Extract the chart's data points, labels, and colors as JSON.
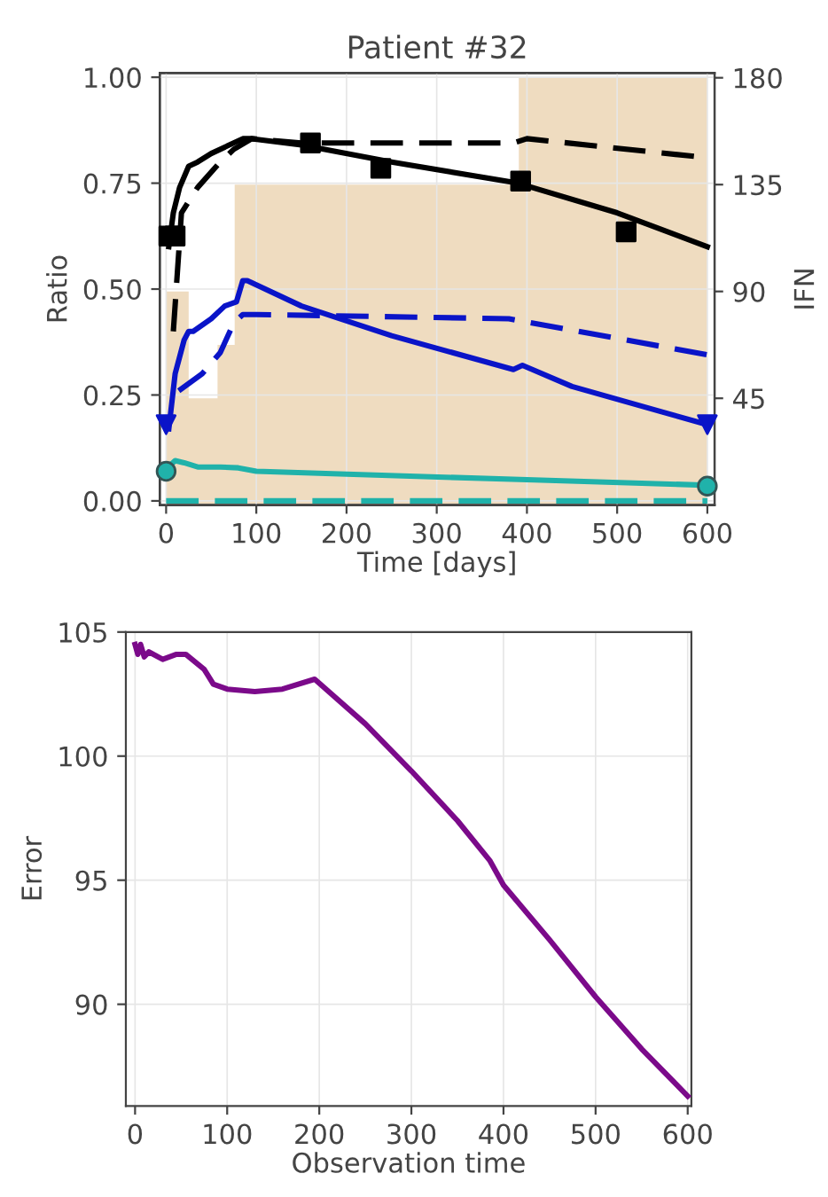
{
  "chart_data": [
    {
      "type": "line",
      "title": "Patient #32",
      "xlabel": "Time [days]",
      "ylabel": "Ratio",
      "y2label": "IFN",
      "xlim": [
        -7,
        608
      ],
      "xticks": [
        0,
        100,
        200,
        300,
        400,
        500,
        600
      ],
      "ylim": [
        -0.01,
        1.01
      ],
      "yticks": [
        {
          "value": 0,
          "label": "0.00"
        },
        {
          "value": 0.25,
          "label": "0.25"
        },
        {
          "value": 0.5,
          "label": "0.50"
        },
        {
          "value": 0.75,
          "label": "0.75"
        },
        {
          "value": 1,
          "label": "1.00"
        }
      ],
      "y2lim": [
        0,
        182
      ],
      "y2ticks": [
        45,
        90,
        135,
        180
      ],
      "grid": true,
      "series": [
        {
          "type": "area",
          "axis": "y2",
          "color": "#efdcc0",
          "x": [
            0,
            25,
            25,
            57,
            57,
            76,
            76,
            391,
            391,
            600
          ],
          "values": [
            90,
            90,
            45,
            45,
            67.5,
            67.5,
            135,
            135,
            180,
            180
          ]
        },
        {
          "type": "line",
          "color": "#000000",
          "line_style": "solid",
          "x": [
            3,
            8,
            15,
            25,
            35,
            50,
            70,
            85,
            95,
            150,
            250,
            390,
            500,
            600
          ],
          "values": [
            0.6,
            0.68,
            0.74,
            0.79,
            0.8,
            0.82,
            0.84,
            0.855,
            0.855,
            0.84,
            0.8,
            0.75,
            0.68,
            0.6
          ]
        },
        {
          "type": "line",
          "color": "#000000",
          "line_style": "dashed",
          "x": [
            8,
            17,
            35,
            60,
            75,
            95,
            150,
            385,
            400,
            600
          ],
          "values": [
            0.4,
            0.68,
            0.74,
            0.8,
            0.83,
            0.855,
            0.845,
            0.845,
            0.855,
            0.81
          ]
        },
        {
          "type": "scatter",
          "color": "#000000",
          "marker": "square",
          "x": [
            3,
            10,
            160,
            238,
            393,
            510
          ],
          "values": [
            0.625,
            0.625,
            0.845,
            0.785,
            0.755,
            0.635
          ]
        },
        {
          "type": "line",
          "color": "#0a14c8",
          "line_style": "solid",
          "x": [
            3,
            10,
            20,
            25,
            30,
            50,
            65,
            78,
            85,
            90,
            150,
            250,
            385,
            395,
            450,
            550,
            600
          ],
          "values": [
            0.17,
            0.3,
            0.38,
            0.4,
            0.4,
            0.43,
            0.46,
            0.47,
            0.52,
            0.52,
            0.46,
            0.39,
            0.31,
            0.32,
            0.27,
            0.21,
            0.18
          ]
        },
        {
          "type": "line",
          "color": "#0a14c8",
          "line_style": "dashed",
          "x": [
            14,
            40,
            60,
            75,
            85,
            100,
            380,
            600
          ],
          "values": [
            0.26,
            0.3,
            0.35,
            0.42,
            0.44,
            0.44,
            0.43,
            0.345
          ]
        },
        {
          "type": "scatter",
          "color": "#0a14c8",
          "marker": "triangle",
          "x": [
            0,
            600
          ],
          "values": [
            0.18,
            0.18
          ]
        },
        {
          "type": "line",
          "color": "#20b2aa",
          "line_style": "solid",
          "x": [
            0,
            10,
            20,
            35,
            60,
            80,
            100,
            200,
            400,
            600
          ],
          "values": [
            0.075,
            0.095,
            0.09,
            0.08,
            0.08,
            0.078,
            0.07,
            0.063,
            0.05,
            0.037
          ]
        },
        {
          "type": "line",
          "color": "#20b2aa",
          "line_style": "dashed",
          "x": [
            0,
            600
          ],
          "values": [
            0.0,
            0.0
          ]
        },
        {
          "type": "scatter",
          "color": "#20b2aa",
          "marker": "circle",
          "x": [
            0,
            600
          ],
          "values": [
            0.07,
            0.035
          ]
        }
      ]
    },
    {
      "type": "line",
      "xlabel": "Observation time",
      "ylabel": "Error",
      "xlim": [
        -10,
        604
      ],
      "xticks": [
        0,
        100,
        200,
        300,
        400,
        500,
        600
      ],
      "ylim": [
        85.9,
        105
      ],
      "yticks": [
        90,
        95,
        100,
        105
      ],
      "grid": true,
      "series": [
        {
          "color": "#7b0a8a",
          "line_style": "solid",
          "x": [
            0,
            3,
            6,
            10,
            15,
            30,
            45,
            55,
            65,
            75,
            85,
            100,
            130,
            160,
            195,
            250,
            300,
            350,
            385,
            400,
            450,
            500,
            550,
            600
          ],
          "values": [
            104.5,
            104.1,
            104.5,
            104.0,
            104.2,
            103.9,
            104.1,
            104.1,
            103.8,
            103.5,
            102.9,
            102.7,
            102.6,
            102.7,
            103.1,
            101.3,
            99.4,
            97.4,
            95.8,
            94.8,
            92.6,
            90.3,
            88.2,
            86.3
          ]
        }
      ]
    }
  ]
}
